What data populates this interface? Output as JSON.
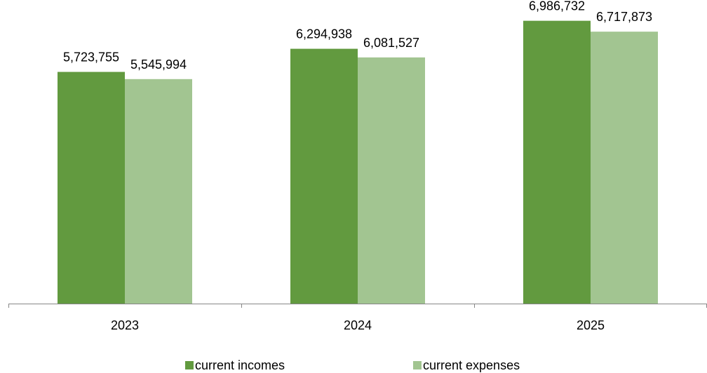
{
  "chart_data": {
    "type": "bar",
    "categories": [
      "2023",
      "2024",
      "2025"
    ],
    "series": [
      {
        "name": "current incomes",
        "values": [
          5723755,
          6294938,
          6986732
        ],
        "labels": [
          "5,723,755",
          "6,294,938",
          "6,986,732"
        ],
        "color": "#629a3f"
      },
      {
        "name": "current expenses",
        "values": [
          5545994,
          6081527,
          6717873
        ],
        "labels": [
          "5,545,994",
          "6,081,527",
          "6,717,873"
        ],
        "color": "#a2c591"
      }
    ],
    "title": "",
    "xlabel": "",
    "ylabel": "",
    "ylim": [
      0,
      7500000
    ],
    "grid": false,
    "legend": "bottom",
    "axis_color": "#868686"
  }
}
